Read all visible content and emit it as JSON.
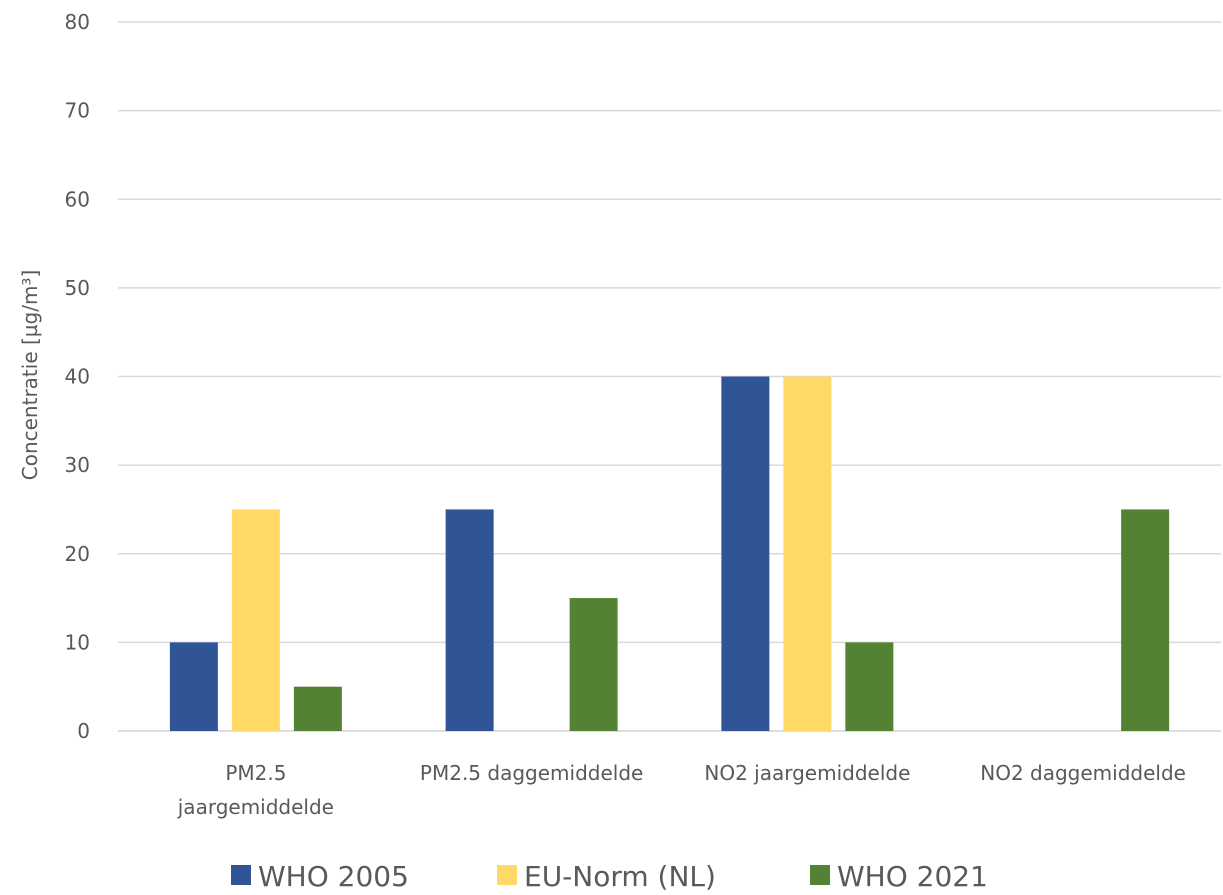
{
  "chart_data": {
    "type": "bar",
    "categories": [
      [
        "PM2.5",
        "jaargemiddelde"
      ],
      [
        "PM2.5 daggemiddelde"
      ],
      [
        "NO2 jaargemiddelde"
      ],
      [
        "NO2 daggemiddelde"
      ]
    ],
    "series": [
      {
        "name": "WHO 2005",
        "color": "#2F5597",
        "values": [
          10,
          25,
          40,
          null
        ]
      },
      {
        "name": "EU-Norm (NL)",
        "color": "#FFD966",
        "values": [
          25,
          null,
          40,
          null
        ]
      },
      {
        "name": "WHO 2021",
        "color": "#548235",
        "values": [
          5,
          15,
          10,
          25
        ]
      }
    ],
    "title": "",
    "xlabel": "",
    "ylabel": "Concentratie [µg/m³]",
    "ylim": [
      0,
      80
    ],
    "yticks": [
      0,
      10,
      20,
      30,
      40,
      50,
      60,
      70,
      80
    ],
    "grid": true,
    "legend": "bottom"
  }
}
